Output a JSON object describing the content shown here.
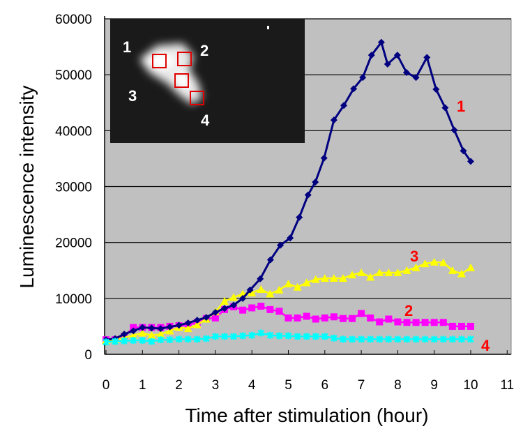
{
  "chart_data": {
    "type": "line",
    "title": "",
    "xlabel": "Time after stimulation (hour)",
    "ylabel": "Luminescence intensity",
    "xlim": [
      0,
      11
    ],
    "ylim": [
      0,
      60000
    ],
    "x_ticks": [
      "0",
      "1",
      "2",
      "3",
      "4",
      "5",
      "6",
      "7",
      "8",
      "9",
      "10",
      "11"
    ],
    "y_ticks": [
      "0",
      "10000",
      "20000",
      "30000",
      "40000",
      "50000",
      "60000"
    ],
    "grid": "horizontal",
    "colors": {
      "plot_bg": "#c0c0c0",
      "label": "#ff0000"
    },
    "series": [
      {
        "name": "1",
        "color": "#000080",
        "marker": "diamond",
        "points": [
          [
            0,
            2600
          ],
          [
            0.25,
            2800
          ],
          [
            0.5,
            3600
          ],
          [
            0.75,
            4200
          ],
          [
            1,
            4800
          ],
          [
            1.25,
            4700
          ],
          [
            1.5,
            4600
          ],
          [
            1.75,
            4900
          ],
          [
            2,
            5200
          ],
          [
            2.25,
            5600
          ],
          [
            2.5,
            6100
          ],
          [
            2.75,
            6600
          ],
          [
            3,
            7500
          ],
          [
            3.25,
            8200
          ],
          [
            3.5,
            8800
          ],
          [
            3.75,
            10000
          ],
          [
            3.95,
            11500
          ],
          [
            4.23,
            13500
          ],
          [
            4.51,
            16900
          ],
          [
            4.78,
            19500
          ],
          [
            5.05,
            20800
          ],
          [
            5.3,
            24500
          ],
          [
            5.54,
            28500
          ],
          [
            5.74,
            30800
          ],
          [
            5.98,
            35100
          ],
          [
            6.25,
            41900
          ],
          [
            6.52,
            44500
          ],
          [
            6.79,
            47500
          ],
          [
            7.04,
            49500
          ],
          [
            7.28,
            53500
          ],
          [
            7.55,
            55800
          ],
          [
            7.72,
            51900
          ],
          [
            7.99,
            53500
          ],
          [
            8.24,
            50400
          ],
          [
            8.5,
            49500
          ],
          [
            8.8,
            53100
          ],
          [
            9.05,
            47400
          ],
          [
            9.3,
            44100
          ],
          [
            9.55,
            40100
          ],
          [
            9.8,
            36400
          ],
          [
            10,
            34500
          ]
        ]
      },
      {
        "name": "2",
        "color": "#ff00ff",
        "marker": "square",
        "points": [
          [
            0,
            2600
          ],
          [
            0.25,
            2600
          ],
          [
            0.5,
            3200
          ],
          [
            0.75,
            4800
          ],
          [
            1,
            4800
          ],
          [
            1.25,
            4800
          ],
          [
            1.5,
            4800
          ],
          [
            1.75,
            5000
          ],
          [
            2,
            5100
          ],
          [
            2.25,
            5200
          ],
          [
            2.5,
            5700
          ],
          [
            2.75,
            6400
          ],
          [
            3,
            6500
          ],
          [
            3.25,
            8000
          ],
          [
            3.5,
            8500
          ],
          [
            3.75,
            7900
          ],
          [
            4,
            8300
          ],
          [
            4.25,
            8600
          ],
          [
            4.5,
            8000
          ],
          [
            4.75,
            7700
          ],
          [
            5,
            6500
          ],
          [
            5.25,
            6500
          ],
          [
            5.5,
            6800
          ],
          [
            5.75,
            6300
          ],
          [
            6,
            6500
          ],
          [
            6.25,
            6700
          ],
          [
            6.5,
            6400
          ],
          [
            6.75,
            6400
          ],
          [
            7,
            7300
          ],
          [
            7.25,
            6500
          ],
          [
            7.5,
            5800
          ],
          [
            7.75,
            6300
          ],
          [
            8,
            5800
          ],
          [
            8.25,
            5700
          ],
          [
            8.5,
            5700
          ],
          [
            8.75,
            5700
          ],
          [
            9,
            5700
          ],
          [
            9.25,
            5700
          ],
          [
            9.5,
            5000
          ],
          [
            9.75,
            5000
          ],
          [
            10,
            5000
          ]
        ]
      },
      {
        "name": "3",
        "color": "#ffff00",
        "marker": "triangle",
        "points": [
          [
            0,
            2500
          ],
          [
            0.25,
            2600
          ],
          [
            0.5,
            3000
          ],
          [
            0.75,
            3400
          ],
          [
            1,
            3800
          ],
          [
            1.25,
            3400
          ],
          [
            1.5,
            3600
          ],
          [
            1.75,
            4200
          ],
          [
            2,
            4800
          ],
          [
            2.25,
            4600
          ],
          [
            2.5,
            5300
          ],
          [
            2.75,
            6300
          ],
          [
            3,
            7600
          ],
          [
            3.25,
            9500
          ],
          [
            3.5,
            10200
          ],
          [
            3.75,
            10800
          ],
          [
            4,
            11000
          ],
          [
            4.25,
            11600
          ],
          [
            4.5,
            10800
          ],
          [
            4.75,
            11500
          ],
          [
            5,
            12600
          ],
          [
            5.25,
            12000
          ],
          [
            5.5,
            12800
          ],
          [
            5.75,
            13400
          ],
          [
            6,
            13600
          ],
          [
            6.25,
            13600
          ],
          [
            6.5,
            13600
          ],
          [
            6.75,
            14200
          ],
          [
            7,
            14600
          ],
          [
            7.25,
            13800
          ],
          [
            7.5,
            14600
          ],
          [
            7.75,
            14600
          ],
          [
            8,
            14600
          ],
          [
            8.25,
            15000
          ],
          [
            8.5,
            15500
          ],
          [
            8.75,
            16200
          ],
          [
            9,
            16500
          ],
          [
            9.25,
            16400
          ],
          [
            9.5,
            15000
          ],
          [
            9.75,
            14400
          ],
          [
            10,
            15500
          ]
        ]
      },
      {
        "name": "4",
        "color": "#00ffff",
        "marker": "x",
        "points": [
          [
            0,
            2200
          ],
          [
            0.25,
            2300
          ],
          [
            0.5,
            2400
          ],
          [
            0.75,
            2500
          ],
          [
            1,
            2500
          ],
          [
            1.25,
            2300
          ],
          [
            1.5,
            2600
          ],
          [
            1.75,
            2600
          ],
          [
            2,
            2700
          ],
          [
            2.25,
            2700
          ],
          [
            2.5,
            2700
          ],
          [
            2.75,
            2800
          ],
          [
            3,
            3200
          ],
          [
            3.25,
            3200
          ],
          [
            3.5,
            3200
          ],
          [
            3.75,
            3300
          ],
          [
            4,
            3400
          ],
          [
            4.25,
            3800
          ],
          [
            4.5,
            3400
          ],
          [
            4.75,
            3300
          ],
          [
            5,
            3300
          ],
          [
            5.25,
            3200
          ],
          [
            5.5,
            3200
          ],
          [
            5.75,
            3200
          ],
          [
            6,
            3200
          ],
          [
            6.25,
            2900
          ],
          [
            6.5,
            2700
          ],
          [
            6.75,
            2700
          ],
          [
            7,
            2700
          ],
          [
            7.25,
            2700
          ],
          [
            7.5,
            2700
          ],
          [
            7.75,
            2700
          ],
          [
            8,
            2700
          ],
          [
            8.25,
            2700
          ],
          [
            8.5,
            2700
          ],
          [
            8.75,
            2700
          ],
          [
            9,
            2700
          ],
          [
            9.25,
            2700
          ],
          [
            9.5,
            2700
          ],
          [
            9.75,
            2700
          ],
          [
            10,
            2700
          ]
        ]
      }
    ],
    "annotations": [
      "1",
      "2",
      "3",
      "4"
    ],
    "inset_labels": [
      "1",
      "2",
      "3",
      "4"
    ]
  }
}
